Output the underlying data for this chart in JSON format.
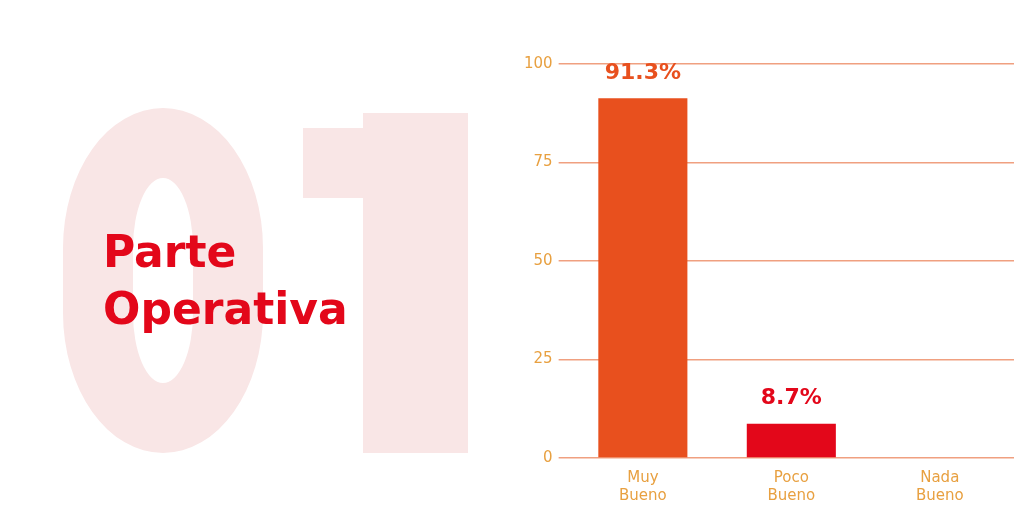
{
  "chart_data": {
    "type": "bar",
    "title": "Parte Operativa",
    "categories": [
      "Muy Bueno",
      "Poco Bueno",
      "Nada Bueno"
    ],
    "values": [
      91.3,
      8.7,
      0
    ],
    "colors": [
      "#e8501e",
      "#e3071a",
      "#e8501e"
    ],
    "value_labels": [
      "91.3%",
      "8.7%",
      null
    ],
    "ylim": [
      0,
      100
    ],
    "yticks": [
      0,
      25,
      50,
      75,
      100
    ],
    "grid": "y",
    "legend": false
  }
}
